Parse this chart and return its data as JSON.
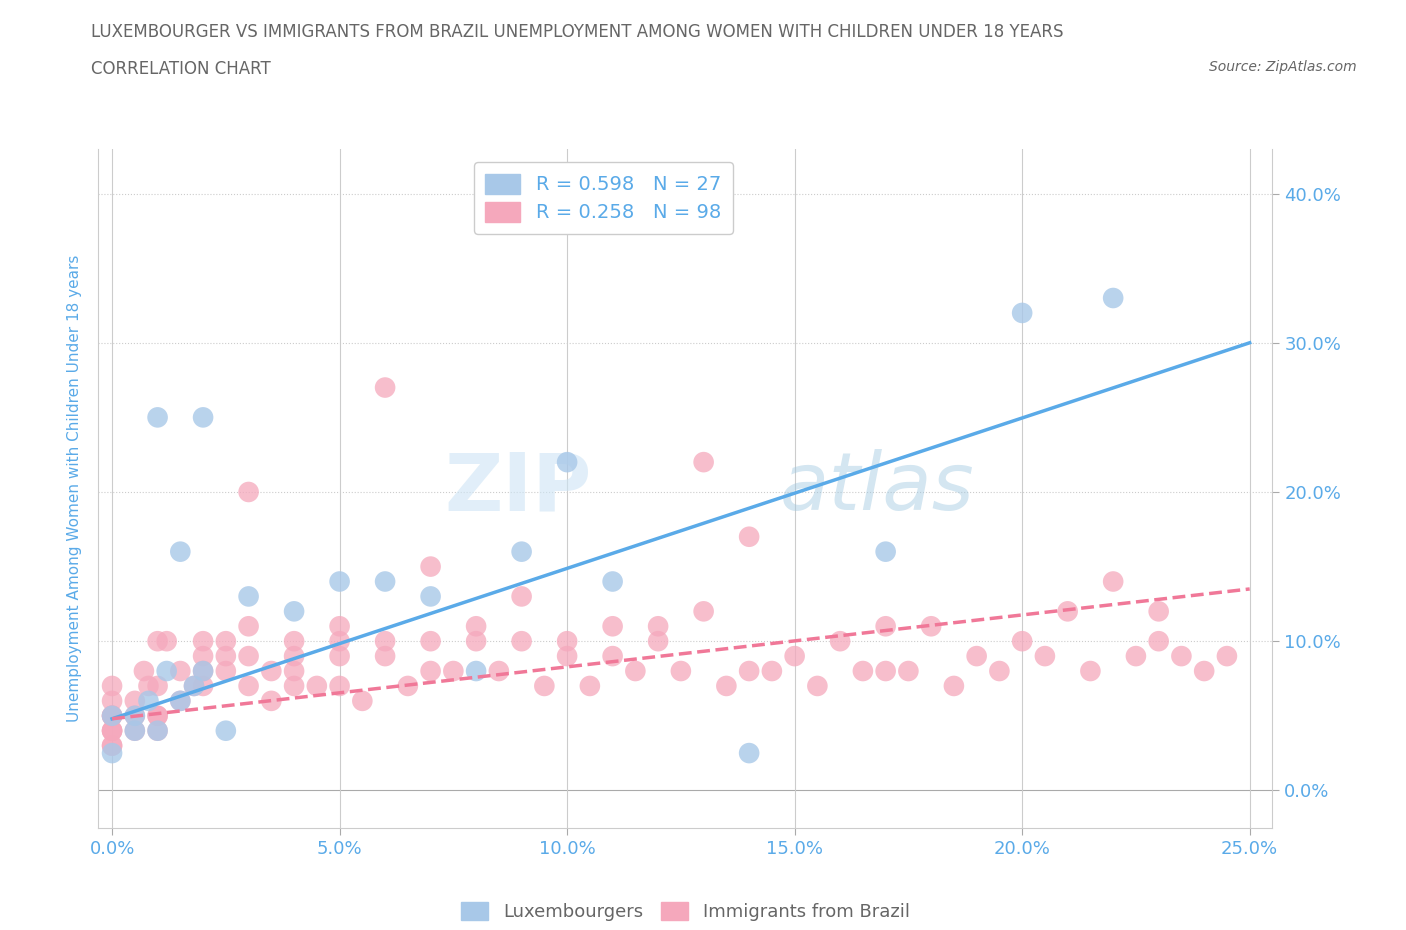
{
  "title_line1": "LUXEMBOURGER VS IMMIGRANTS FROM BRAZIL UNEMPLOYMENT AMONG WOMEN WITH CHILDREN UNDER 18 YEARS",
  "title_line2": "CORRELATION CHART",
  "source": "Source: ZipAtlas.com",
  "xlabel_ticks": [
    "0.0%",
    "5.0%",
    "10.0%",
    "15.0%",
    "20.0%",
    "25.0%"
  ],
  "ylabel_ticks": [
    "0.0%",
    "10.0%",
    "20.0%",
    "30.0%",
    "40.0%"
  ],
  "xlim": [
    -0.003,
    0.255
  ],
  "ylim": [
    -0.025,
    0.43
  ],
  "legend_labels": [
    "Luxembourgers",
    "Immigrants from Brazil"
  ],
  "lux_R": 0.598,
  "lux_N": 27,
  "bra_R": 0.258,
  "bra_N": 98,
  "lux_color": "#a8c8e8",
  "bra_color": "#f5a8bc",
  "lux_line_color": "#5aaae8",
  "bra_line_color": "#f07898",
  "watermark_zip": "ZIP",
  "watermark_atlas": "atlas",
  "title_color": "#666666",
  "axis_label_color": "#5aaae8",
  "lux_scatter_x": [
    0.0,
    0.0,
    0.005,
    0.005,
    0.008,
    0.01,
    0.01,
    0.012,
    0.015,
    0.015,
    0.018,
    0.02,
    0.02,
    0.025,
    0.03,
    0.04,
    0.05,
    0.06,
    0.07,
    0.08,
    0.09,
    0.1,
    0.11,
    0.14,
    0.17,
    0.2,
    0.22
  ],
  "lux_scatter_y": [
    0.05,
    0.025,
    0.05,
    0.04,
    0.06,
    0.25,
    0.04,
    0.08,
    0.06,
    0.16,
    0.07,
    0.08,
    0.25,
    0.04,
    0.13,
    0.12,
    0.14,
    0.14,
    0.13,
    0.08,
    0.16,
    0.22,
    0.14,
    0.025,
    0.16,
    0.32,
    0.33
  ],
  "bra_scatter_x": [
    0.0,
    0.0,
    0.0,
    0.0,
    0.0,
    0.0,
    0.0,
    0.0,
    0.0,
    0.0,
    0.005,
    0.005,
    0.005,
    0.007,
    0.008,
    0.01,
    0.01,
    0.01,
    0.01,
    0.01,
    0.012,
    0.015,
    0.015,
    0.018,
    0.02,
    0.02,
    0.02,
    0.02,
    0.025,
    0.025,
    0.03,
    0.03,
    0.03,
    0.03,
    0.035,
    0.04,
    0.04,
    0.04,
    0.04,
    0.05,
    0.05,
    0.05,
    0.05,
    0.06,
    0.06,
    0.06,
    0.07,
    0.07,
    0.07,
    0.08,
    0.08,
    0.09,
    0.09,
    0.1,
    0.1,
    0.11,
    0.11,
    0.12,
    0.12,
    0.13,
    0.13,
    0.14,
    0.14,
    0.15,
    0.16,
    0.17,
    0.17,
    0.18,
    0.19,
    0.2,
    0.21,
    0.22,
    0.23,
    0.23,
    0.24,
    0.025,
    0.035,
    0.045,
    0.055,
    0.065,
    0.075,
    0.085,
    0.095,
    0.105,
    0.115,
    0.125,
    0.135,
    0.145,
    0.155,
    0.165,
    0.175,
    0.185,
    0.195,
    0.205,
    0.215,
    0.225,
    0.235,
    0.245
  ],
  "bra_scatter_y": [
    0.04,
    0.03,
    0.05,
    0.04,
    0.06,
    0.05,
    0.03,
    0.04,
    0.05,
    0.07,
    0.04,
    0.05,
    0.06,
    0.08,
    0.07,
    0.05,
    0.04,
    0.07,
    0.1,
    0.05,
    0.1,
    0.06,
    0.08,
    0.07,
    0.09,
    0.1,
    0.07,
    0.08,
    0.08,
    0.1,
    0.09,
    0.07,
    0.11,
    0.2,
    0.06,
    0.07,
    0.09,
    0.08,
    0.1,
    0.07,
    0.09,
    0.1,
    0.11,
    0.1,
    0.27,
    0.09,
    0.08,
    0.1,
    0.15,
    0.11,
    0.1,
    0.13,
    0.1,
    0.1,
    0.09,
    0.11,
    0.09,
    0.11,
    0.1,
    0.12,
    0.22,
    0.08,
    0.17,
    0.09,
    0.1,
    0.11,
    0.08,
    0.11,
    0.09,
    0.1,
    0.12,
    0.14,
    0.1,
    0.12,
    0.08,
    0.09,
    0.08,
    0.07,
    0.06,
    0.07,
    0.08,
    0.08,
    0.07,
    0.07,
    0.08,
    0.08,
    0.07,
    0.08,
    0.07,
    0.08,
    0.08,
    0.07,
    0.08,
    0.09,
    0.08,
    0.09,
    0.09,
    0.09
  ],
  "lux_line_x0": 0.0,
  "lux_line_y0": 0.048,
  "lux_line_x1": 0.25,
  "lux_line_y1": 0.3,
  "bra_line_x0": 0.0,
  "bra_line_y0": 0.048,
  "bra_line_x1": 0.25,
  "bra_line_y1": 0.135
}
